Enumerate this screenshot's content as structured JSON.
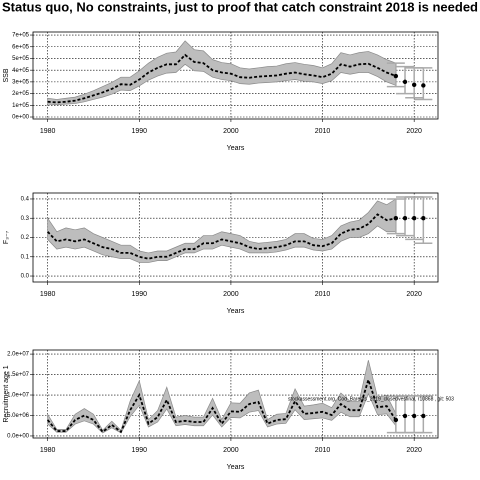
{
  "title": "Status quo, No constraints, just to proof that catch constraint 2018 is needed",
  "chart_data": [
    {
      "type": "line",
      "ylabel": "SSB",
      "xlabel": "Years",
      "xlim": [
        1978.4,
        2022.6
      ],
      "xticks": [
        1980,
        1990,
        2000,
        2010,
        2020
      ],
      "ylim": [
        -17000,
        726000
      ],
      "yticks": [
        {
          "value": 0,
          "label": "0e+00"
        },
        {
          "value": 100000,
          "label": "1e+05"
        },
        {
          "value": 200000,
          "label": "2e+05"
        },
        {
          "value": 300000,
          "label": "3e+05"
        },
        {
          "value": 400000,
          "label": "4e+05"
        },
        {
          "value": 500000,
          "label": "5e+05"
        },
        {
          "value": 600000,
          "label": "6e+05"
        },
        {
          "value": 700000,
          "label": "7e+05"
        }
      ],
      "grid": true,
      "x": [
        1980,
        1981,
        1982,
        1983,
        1984,
        1985,
        1986,
        1987,
        1988,
        1989,
        1990,
        1991,
        1992,
        1993,
        1994,
        1995,
        1996,
        1997,
        1998,
        1999,
        2000,
        2001,
        2002,
        2003,
        2004,
        2005,
        2006,
        2007,
        2008,
        2009,
        2010,
        2011,
        2012,
        2013,
        2014,
        2015,
        2016,
        2017,
        2018
      ],
      "values": [
        130000,
        125000,
        130000,
        140000,
        160000,
        185000,
        210000,
        240000,
        280000,
        275000,
        320000,
        380000,
        420000,
        450000,
        450000,
        530000,
        470000,
        460000,
        400000,
        380000,
        370000,
        340000,
        335000,
        345000,
        350000,
        355000,
        370000,
        380000,
        365000,
        355000,
        340000,
        370000,
        450000,
        430000,
        450000,
        455000,
        420000,
        380000,
        350000
      ],
      "lower": [
        110000,
        105000,
        110000,
        115000,
        130000,
        150000,
        170000,
        195000,
        230000,
        225000,
        265000,
        315000,
        350000,
        375000,
        380000,
        450000,
        395000,
        390000,
        340000,
        320000,
        310000,
        285000,
        280000,
        290000,
        295000,
        300000,
        310000,
        320000,
        305000,
        300000,
        285000,
        310000,
        380000,
        365000,
        380000,
        380000,
        345000,
        300000,
        270000
      ],
      "upper": [
        160000,
        150000,
        160000,
        170000,
        195000,
        225000,
        260000,
        295000,
        340000,
        340000,
        395000,
        460000,
        510000,
        545000,
        555000,
        650000,
        575000,
        565000,
        490000,
        465000,
        455000,
        420000,
        410000,
        420000,
        430000,
        435000,
        455000,
        465000,
        450000,
        440000,
        420000,
        455000,
        550000,
        530000,
        550000,
        560000,
        530000,
        490000,
        460000
      ],
      "proj_x": [
        2018,
        2019,
        2020,
        2021
      ],
      "proj_values": [
        350000,
        300000,
        275000,
        270000
      ],
      "proj_lower": [
        260000,
        200000,
        165000,
        150000
      ],
      "proj_upper": [
        460000,
        430000,
        420000,
        420000
      ]
    },
    {
      "type": "line",
      "ylabel": "F₃₋₇",
      "xlabel": "Years",
      "xlim": [
        1978.4,
        2022.6
      ],
      "xticks": [
        1980,
        1990,
        2000,
        2010,
        2020
      ],
      "ylim": [
        -0.031,
        0.431
      ],
      "yticks": [
        {
          "value": 0,
          "label": "0.0"
        },
        0.1,
        0.2,
        0.3,
        0.4
      ],
      "grid": true,
      "x": [
        1980,
        1981,
        1982,
        1983,
        1984,
        1985,
        1986,
        1987,
        1988,
        1989,
        1990,
        1991,
        1992,
        1993,
        1994,
        1995,
        1996,
        1997,
        1998,
        1999,
        2000,
        2001,
        2002,
        2003,
        2004,
        2005,
        2006,
        2007,
        2008,
        2009,
        2010,
        2011,
        2012,
        2013,
        2014,
        2015,
        2016,
        2017,
        2018
      ],
      "values": [
        0.23,
        0.18,
        0.19,
        0.18,
        0.19,
        0.17,
        0.15,
        0.14,
        0.12,
        0.12,
        0.1,
        0.09,
        0.1,
        0.1,
        0.12,
        0.14,
        0.14,
        0.17,
        0.17,
        0.19,
        0.18,
        0.17,
        0.15,
        0.14,
        0.145,
        0.15,
        0.16,
        0.18,
        0.18,
        0.16,
        0.155,
        0.17,
        0.22,
        0.24,
        0.245,
        0.27,
        0.32,
        0.29,
        0.3
      ],
      "lower": [
        0.19,
        0.14,
        0.15,
        0.14,
        0.15,
        0.13,
        0.11,
        0.1,
        0.09,
        0.09,
        0.07,
        0.07,
        0.08,
        0.08,
        0.1,
        0.12,
        0.12,
        0.14,
        0.14,
        0.16,
        0.15,
        0.14,
        0.12,
        0.12,
        0.12,
        0.125,
        0.135,
        0.15,
        0.15,
        0.135,
        0.13,
        0.14,
        0.18,
        0.2,
        0.2,
        0.22,
        0.26,
        0.23,
        0.23
      ],
      "upper": [
        0.3,
        0.23,
        0.25,
        0.24,
        0.25,
        0.22,
        0.2,
        0.18,
        0.16,
        0.16,
        0.13,
        0.12,
        0.13,
        0.13,
        0.15,
        0.17,
        0.17,
        0.21,
        0.21,
        0.23,
        0.22,
        0.21,
        0.18,
        0.17,
        0.175,
        0.18,
        0.19,
        0.22,
        0.22,
        0.195,
        0.19,
        0.21,
        0.26,
        0.28,
        0.29,
        0.33,
        0.39,
        0.37,
        0.4
      ],
      "proj_x": [
        2018,
        2019,
        2020,
        2021
      ],
      "proj_values": [
        0.3,
        0.3,
        0.3,
        0.3
      ],
      "proj_lower": [
        0.22,
        0.21,
        0.19,
        0.17
      ],
      "proj_upper": [
        0.4,
        0.41,
        0.41,
        0.41
      ]
    },
    {
      "type": "line",
      "ylabel": "Recruitment age 1",
      "xlabel": "Years",
      "annotation": "stockassessment.org, Cod_Barents_2019_closedvesfinal, r10868 , git: 503",
      "xlim": [
        1978.4,
        2022.6
      ],
      "xticks": [
        1980,
        1990,
        2000,
        2010,
        2020
      ],
      "ylim": [
        -500000,
        21000000
      ],
      "yticks": [
        {
          "value": 0,
          "label": "0.0e+00"
        },
        {
          "value": 5000000,
          "label": "5.0e+06"
        },
        {
          "value": 10000000,
          "label": "1.0e+07"
        },
        {
          "value": 15000000,
          "label": "1.5e+07"
        },
        {
          "value": 20000000,
          "label": "2.0e+07"
        }
      ],
      "grid": true,
      "x": [
        1980,
        1981,
        1982,
        1983,
        1984,
        1985,
        1986,
        1987,
        1988,
        1989,
        1990,
        1991,
        1992,
        1993,
        1994,
        1995,
        1996,
        1997,
        1998,
        1999,
        2000,
        2001,
        2002,
        2003,
        2004,
        2005,
        2006,
        2007,
        2008,
        2009,
        2010,
        2011,
        2012,
        2013,
        2014,
        2015,
        2016,
        2017,
        2018
      ],
      "values": [
        3900000,
        1200000,
        1200000,
        3900000,
        5000000,
        3900000,
        1000000,
        2700000,
        1000000,
        6300000,
        10000000,
        3000000,
        4600000,
        8800000,
        3400000,
        3700000,
        3400000,
        3400000,
        6800000,
        3000000,
        6000000,
        5900000,
        7800000,
        8300000,
        3000000,
        3900000,
        4100000,
        8500000,
        5400000,
        5600000,
        5900000,
        5100000,
        7800000,
        6300000,
        6300000,
        13700000,
        7000000,
        7300000,
        3900000
      ],
      "lower": [
        2900000,
        900000,
        900000,
        2900000,
        3700000,
        2900000,
        750000,
        2000000,
        750000,
        4700000,
        7500000,
        2200000,
        3400000,
        6600000,
        2500000,
        2800000,
        2500000,
        2500000,
        5100000,
        2200000,
        4500000,
        4400000,
        5800000,
        6200000,
        2200000,
        2900000,
        3100000,
        6400000,
        4000000,
        4200000,
        4400000,
        3800000,
        5800000,
        4700000,
        4700000,
        10300000,
        5200000,
        5400000,
        2500000
      ],
      "upper": [
        5300000,
        1600000,
        1600000,
        5300000,
        6700000,
        5300000,
        1400000,
        3600000,
        1400000,
        8500000,
        13500000,
        4000000,
        6200000,
        11900000,
        4600000,
        5000000,
        4600000,
        4600000,
        9200000,
        4000000,
        8100000,
        8000000,
        10500000,
        11200000,
        4000000,
        5300000,
        5500000,
        11500000,
        7300000,
        7600000,
        8000000,
        6900000,
        10500000,
        8500000,
        8500000,
        18500000,
        9500000,
        9900000,
        5500000
      ],
      "proj_x": [
        2018,
        2019,
        2020,
        2021
      ],
      "proj_values": [
        3900000,
        4900000,
        4900000,
        4900000
      ],
      "proj_lower": [
        800000,
        800000,
        800000,
        800000
      ],
      "proj_upper": [
        9700000,
        9800000,
        9800000,
        9800000
      ]
    }
  ]
}
